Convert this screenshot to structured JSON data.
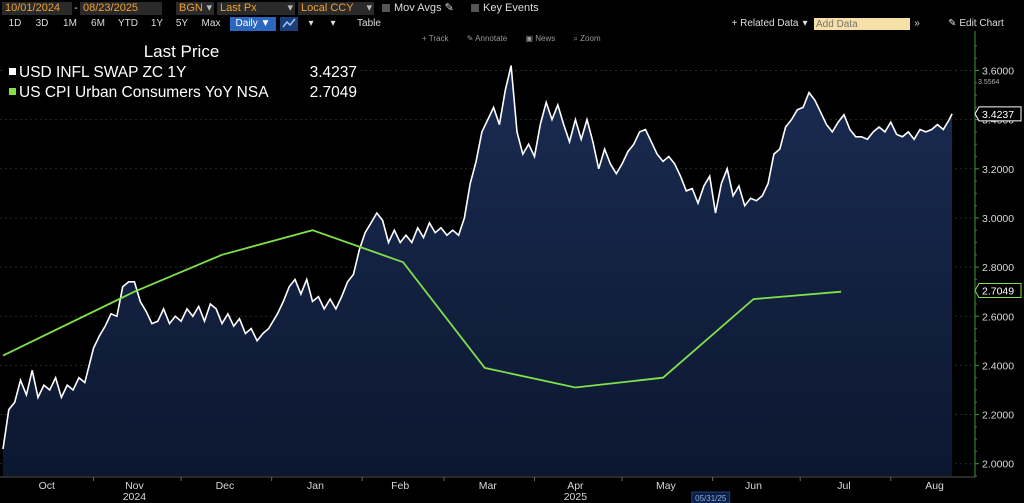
{
  "toolbar": {
    "start_date": "10/01/2024",
    "end_date": "08/23/2025",
    "source": "BGN",
    "field": "Last Px",
    "currency": "Local CCY",
    "mov_avgs": "Mov Avgs",
    "key_events": "Key Events",
    "related_data": "+ Related Data",
    "add_data_placeholder": "Add Data",
    "edit_chart": "Edit Chart",
    "periods": [
      "1D",
      "3D",
      "1M",
      "6M",
      "YTD",
      "1Y",
      "5Y",
      "Max"
    ],
    "frequency": "Daily ▼",
    "table": "Table"
  },
  "chart_tools": [
    "Track",
    "Annotate",
    "News",
    "Zoom"
  ],
  "legend": {
    "title": "Last Price",
    "items": [
      {
        "name": "USD INFL SWAP ZC 1Y",
        "value": "3.4237",
        "color": "#ffffff"
      },
      {
        "name": "US CPI Urban Consumers YoY NSA",
        "value": "2.7049",
        "color": "#7fe04a"
      }
    ]
  },
  "chart_data": {
    "type": "line",
    "x_range": [
      "2024-10-01",
      "2025-08-23"
    ],
    "ylim": [
      1.95,
      3.72
    ],
    "y_ticks": [
      2.0,
      2.2,
      2.4,
      2.6,
      2.8,
      3.0,
      3.2,
      3.4,
      3.6
    ],
    "y_tick_labels": [
      "2.0000",
      "2.2000",
      "2.4000",
      "2.6000",
      "2.8000",
      "3.0000",
      "3.2000",
      "3.4000",
      "3.6000"
    ],
    "x_ticks": [
      {
        "label": "Oct",
        "date": "2024-10-16"
      },
      {
        "label": "Nov",
        "date": "2024-11-15"
      },
      {
        "label": "Dec",
        "date": "2024-12-16"
      },
      {
        "label": "Jan",
        "date": "2025-01-16"
      },
      {
        "label": "Feb",
        "date": "2025-02-14"
      },
      {
        "label": "Mar",
        "date": "2025-03-16"
      },
      {
        "label": "Apr",
        "date": "2025-04-15"
      },
      {
        "label": "May",
        "date": "2025-05-16"
      },
      {
        "label": "Jun",
        "date": "2025-06-15"
      },
      {
        "label": "Jul",
        "date": "2025-07-16"
      },
      {
        "label": "Aug",
        "date": "2025-08-16"
      }
    ],
    "year_labels": [
      {
        "label": "2024",
        "date": "2024-11-15"
      },
      {
        "label": "2025",
        "date": "2025-04-15"
      }
    ],
    "cursor_date_label": "05/31/25",
    "hi_marker": "3.5564",
    "series": [
      {
        "name": "USD INFL SWAP ZC 1Y",
        "color": "#ffffff",
        "fill": "#13213f",
        "last_value": "3.4237",
        "points": [
          [
            "2024-10-01",
            2.06
          ],
          [
            "2024-10-03",
            2.22
          ],
          [
            "2024-10-05",
            2.25
          ],
          [
            "2024-10-07",
            2.34
          ],
          [
            "2024-10-09",
            2.28
          ],
          [
            "2024-10-11",
            2.38
          ],
          [
            "2024-10-13",
            2.27
          ],
          [
            "2024-10-15",
            2.32
          ],
          [
            "2024-10-17",
            2.3
          ],
          [
            "2024-10-19",
            2.35
          ],
          [
            "2024-10-21",
            2.27
          ],
          [
            "2024-10-23",
            2.32
          ],
          [
            "2024-10-25",
            2.3
          ],
          [
            "2024-10-27",
            2.35
          ],
          [
            "2024-10-29",
            2.33
          ],
          [
            "2024-11-01",
            2.47
          ],
          [
            "2024-11-03",
            2.52
          ],
          [
            "2024-11-05",
            2.56
          ],
          [
            "2024-11-07",
            2.61
          ],
          [
            "2024-11-09",
            2.6
          ],
          [
            "2024-11-11",
            2.72
          ],
          [
            "2024-11-13",
            2.74
          ],
          [
            "2024-11-15",
            2.74
          ],
          [
            "2024-11-17",
            2.66
          ],
          [
            "2024-11-19",
            2.62
          ],
          [
            "2024-11-21",
            2.57
          ],
          [
            "2024-11-23",
            2.58
          ],
          [
            "2024-11-25",
            2.63
          ],
          [
            "2024-11-27",
            2.57
          ],
          [
            "2024-11-29",
            2.6
          ],
          [
            "2024-12-01",
            2.58
          ],
          [
            "2024-12-03",
            2.63
          ],
          [
            "2024-12-05",
            2.6
          ],
          [
            "2024-12-07",
            2.64
          ],
          [
            "2024-12-09",
            2.58
          ],
          [
            "2024-12-11",
            2.65
          ],
          [
            "2024-12-13",
            2.63
          ],
          [
            "2024-12-15",
            2.57
          ],
          [
            "2024-12-17",
            2.61
          ],
          [
            "2024-12-19",
            2.56
          ],
          [
            "2024-12-21",
            2.59
          ],
          [
            "2024-12-23",
            2.53
          ],
          [
            "2024-12-25",
            2.55
          ],
          [
            "2024-12-27",
            2.5
          ],
          [
            "2024-12-29",
            2.53
          ],
          [
            "2024-12-31",
            2.55
          ],
          [
            "2025-01-03",
            2.61
          ],
          [
            "2025-01-05",
            2.66
          ],
          [
            "2025-01-07",
            2.72
          ],
          [
            "2025-01-09",
            2.75
          ],
          [
            "2025-01-11",
            2.69
          ],
          [
            "2025-01-13",
            2.75
          ],
          [
            "2025-01-15",
            2.66
          ],
          [
            "2025-01-17",
            2.68
          ],
          [
            "2025-01-19",
            2.63
          ],
          [
            "2025-01-21",
            2.67
          ],
          [
            "2025-01-23",
            2.63
          ],
          [
            "2025-01-25",
            2.68
          ],
          [
            "2025-01-27",
            2.74
          ],
          [
            "2025-01-29",
            2.77
          ],
          [
            "2025-01-31",
            2.87
          ],
          [
            "2025-02-02",
            2.94
          ],
          [
            "2025-02-04",
            2.98
          ],
          [
            "2025-02-06",
            3.02
          ],
          [
            "2025-02-08",
            2.99
          ],
          [
            "2025-02-10",
            2.9
          ],
          [
            "2025-02-12",
            2.95
          ],
          [
            "2025-02-14",
            2.9
          ],
          [
            "2025-02-16",
            2.93
          ],
          [
            "2025-02-18",
            2.9
          ],
          [
            "2025-02-20",
            2.96
          ],
          [
            "2025-02-22",
            2.92
          ],
          [
            "2025-02-24",
            2.98
          ],
          [
            "2025-02-26",
            2.94
          ],
          [
            "2025-02-28",
            2.96
          ],
          [
            "2025-03-02",
            2.93
          ],
          [
            "2025-03-04",
            2.95
          ],
          [
            "2025-03-06",
            2.93
          ],
          [
            "2025-03-08",
            3.0
          ],
          [
            "2025-03-10",
            3.14
          ],
          [
            "2025-03-12",
            3.23
          ],
          [
            "2025-03-14",
            3.35
          ],
          [
            "2025-03-16",
            3.4
          ],
          [
            "2025-03-18",
            3.45
          ],
          [
            "2025-03-20",
            3.38
          ],
          [
            "2025-03-22",
            3.52
          ],
          [
            "2025-03-24",
            3.62
          ],
          [
            "2025-03-26",
            3.35
          ],
          [
            "2025-03-28",
            3.26
          ],
          [
            "2025-03-30",
            3.3
          ],
          [
            "2025-04-01",
            3.25
          ],
          [
            "2025-04-03",
            3.38
          ],
          [
            "2025-04-05",
            3.47
          ],
          [
            "2025-04-07",
            3.4
          ],
          [
            "2025-04-09",
            3.46
          ],
          [
            "2025-04-11",
            3.38
          ],
          [
            "2025-04-13",
            3.31
          ],
          [
            "2025-04-15",
            3.4
          ],
          [
            "2025-04-17",
            3.32
          ],
          [
            "2025-04-19",
            3.4
          ],
          [
            "2025-04-21",
            3.31
          ],
          [
            "2025-04-23",
            3.2
          ],
          [
            "2025-04-25",
            3.28
          ],
          [
            "2025-04-27",
            3.22
          ],
          [
            "2025-04-29",
            3.18
          ],
          [
            "2025-05-01",
            3.22
          ],
          [
            "2025-05-03",
            3.27
          ],
          [
            "2025-05-05",
            3.3
          ],
          [
            "2025-05-07",
            3.35
          ],
          [
            "2025-05-09",
            3.36
          ],
          [
            "2025-05-11",
            3.31
          ],
          [
            "2025-05-13",
            3.26
          ],
          [
            "2025-05-15",
            3.23
          ],
          [
            "2025-05-17",
            3.25
          ],
          [
            "2025-05-19",
            3.22
          ],
          [
            "2025-05-21",
            3.17
          ],
          [
            "2025-05-23",
            3.11
          ],
          [
            "2025-05-25",
            3.12
          ],
          [
            "2025-05-27",
            3.06
          ],
          [
            "2025-05-29",
            3.13
          ],
          [
            "2025-05-31",
            3.17
          ],
          [
            "2025-06-02",
            3.02
          ],
          [
            "2025-06-04",
            3.14
          ],
          [
            "2025-06-06",
            3.2
          ],
          [
            "2025-06-08",
            3.09
          ],
          [
            "2025-06-10",
            3.13
          ],
          [
            "2025-06-12",
            3.05
          ],
          [
            "2025-06-14",
            3.08
          ],
          [
            "2025-06-16",
            3.07
          ],
          [
            "2025-06-18",
            3.09
          ],
          [
            "2025-06-20",
            3.14
          ],
          [
            "2025-06-22",
            3.26
          ],
          [
            "2025-06-24",
            3.28
          ],
          [
            "2025-06-26",
            3.37
          ],
          [
            "2025-06-28",
            3.4
          ],
          [
            "2025-06-30",
            3.44
          ],
          [
            "2025-07-02",
            3.45
          ],
          [
            "2025-07-04",
            3.51
          ],
          [
            "2025-07-06",
            3.48
          ],
          [
            "2025-07-08",
            3.43
          ],
          [
            "2025-07-10",
            3.38
          ],
          [
            "2025-07-12",
            3.35
          ],
          [
            "2025-07-14",
            3.39
          ],
          [
            "2025-07-16",
            3.42
          ],
          [
            "2025-07-18",
            3.36
          ],
          [
            "2025-07-20",
            3.33
          ],
          [
            "2025-07-22",
            3.33
          ],
          [
            "2025-07-24",
            3.32
          ],
          [
            "2025-07-26",
            3.35
          ],
          [
            "2025-07-28",
            3.37
          ],
          [
            "2025-07-30",
            3.35
          ],
          [
            "2025-08-01",
            3.39
          ],
          [
            "2025-08-03",
            3.34
          ],
          [
            "2025-08-05",
            3.33
          ],
          [
            "2025-08-07",
            3.35
          ],
          [
            "2025-08-09",
            3.32
          ],
          [
            "2025-08-11",
            3.36
          ],
          [
            "2025-08-13",
            3.35
          ],
          [
            "2025-08-15",
            3.36
          ],
          [
            "2025-08-17",
            3.38
          ],
          [
            "2025-08-19",
            3.36
          ],
          [
            "2025-08-21",
            3.4
          ],
          [
            "2025-08-22",
            3.4237
          ]
        ]
      },
      {
        "name": "US CPI Urban Consumers YoY NSA",
        "color": "#7fe04a",
        "last_value": "2.7049",
        "points": [
          [
            "2024-10-01",
            2.44
          ],
          [
            "2024-11-15",
            2.7
          ],
          [
            "2024-12-15",
            2.85
          ],
          [
            "2025-01-15",
            2.95
          ],
          [
            "2025-02-15",
            2.82
          ],
          [
            "2025-03-15",
            2.39
          ],
          [
            "2025-04-15",
            2.31
          ],
          [
            "2025-05-15",
            2.35
          ],
          [
            "2025-06-15",
            2.67
          ],
          [
            "2025-07-15",
            2.7
          ]
        ]
      }
    ]
  }
}
